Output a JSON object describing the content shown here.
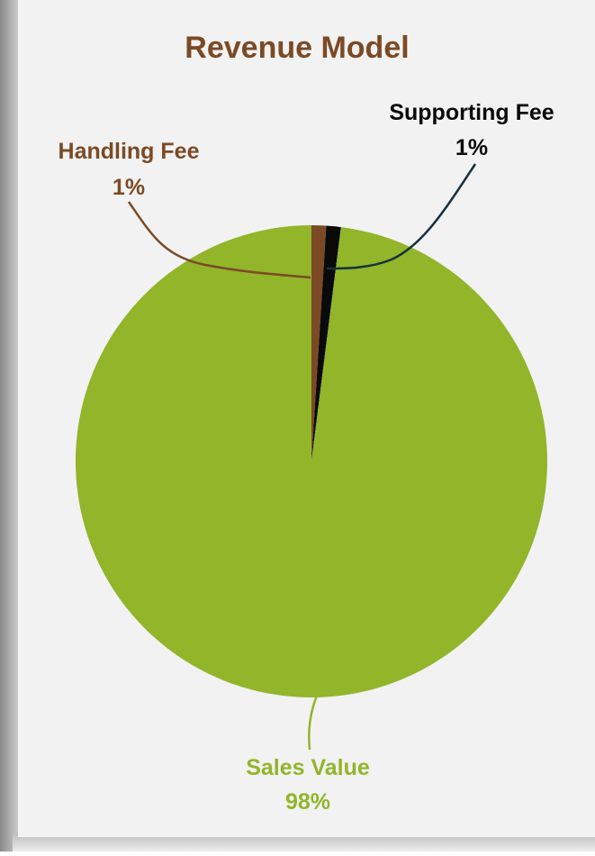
{
  "chart_data": {
    "type": "pie",
    "title": "Revenue Model",
    "slices": [
      {
        "label": "Handling Fee",
        "value": 1,
        "value_label": "1%",
        "color": "#7B4A25",
        "label_color": "#7B4A25"
      },
      {
        "label": "Supporting Fee",
        "value": 1,
        "value_label": "1%",
        "color": "#0A0A0A",
        "label_color": "#0A0A0A"
      },
      {
        "label": "Sales Value",
        "value": 98,
        "value_label": "98%",
        "color": "#92B52A",
        "label_color": "#92B52A"
      }
    ],
    "start_angle_deg": 0,
    "direction": "clockwise",
    "legend": "none",
    "colors": {
      "title": "#7B4A25",
      "background": "#F2F2F2",
      "frame_shadow": "#9E9E9E",
      "leader_supporting": "#15303E"
    }
  }
}
